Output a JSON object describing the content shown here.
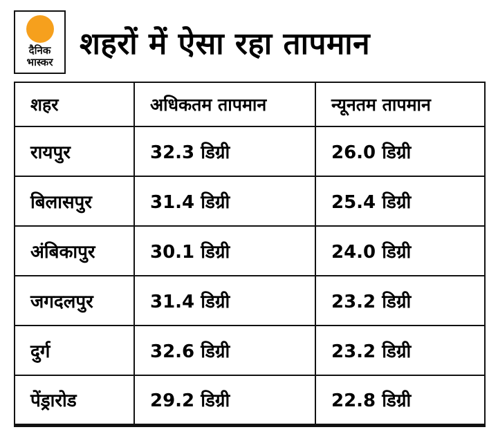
{
  "brand": {
    "logo_line1": "दैनिक",
    "logo_line2": "भास्कर",
    "accent_color": "#f6a01d"
  },
  "header": {
    "title": "शहरों में ऐसा रहा तापमान"
  },
  "chart_data": {
    "type": "table",
    "title": "शहरों में ऐसा रहा तापमान",
    "columns": [
      "शहर",
      "अधिकतम तापमान",
      "न्यूनतम तापमान"
    ],
    "rows": [
      [
        "रायपुर",
        "32.3 डिग्री",
        "26.0 डिग्री"
      ],
      [
        "बिलासपुर",
        "31.4 डिग्री",
        "25.4 डिग्री"
      ],
      [
        "अंबिकापुर",
        "30.1 डिग्री",
        "24.0 डिग्री"
      ],
      [
        "जगदलपुर",
        "31.4 डिग्री",
        "23.2 डिग्री"
      ],
      [
        "दुर्ग",
        "32.6 डिग्री",
        "23.2 डिग्री"
      ],
      [
        "पेंड्रारोड",
        "29.2 डिग्री",
        "22.8 डिग्री"
      ]
    ],
    "unit_label": "डिग्री",
    "numeric": {
      "cities": [
        "रायपुर",
        "बिलासपुर",
        "अंबिकापुर",
        "जगदलपुर",
        "दुर्ग",
        "पेंड्रारोड"
      ],
      "max_temp": [
        32.3,
        31.4,
        30.1,
        31.4,
        32.6,
        29.2
      ],
      "min_temp": [
        26.0,
        25.4,
        24.0,
        23.2,
        23.2,
        22.8
      ]
    }
  }
}
